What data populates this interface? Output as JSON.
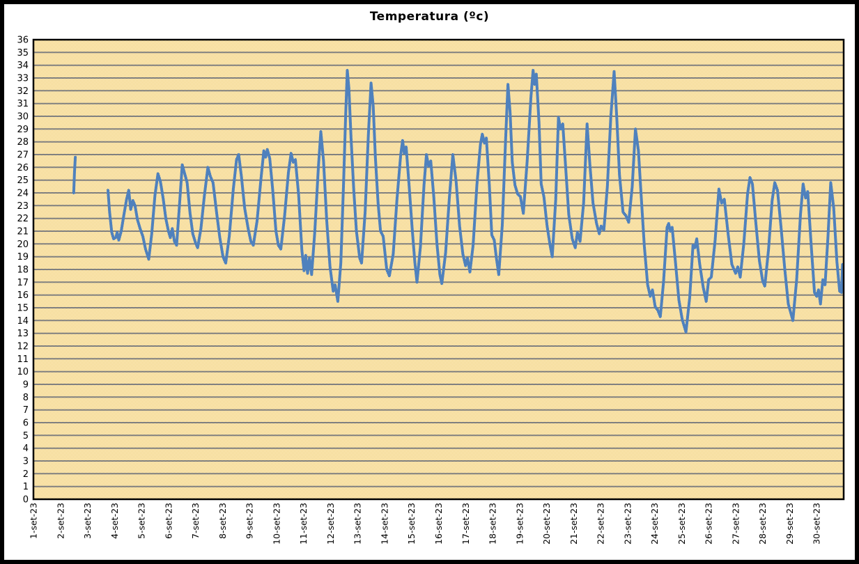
{
  "window": {
    "background": "#ffffff",
    "frame_color": "#000000"
  },
  "chart_data": {
    "type": "line",
    "title": "Temperatura (ºc)",
    "xlabel": "",
    "ylabel": "",
    "legend": "none",
    "grid": "horizontal",
    "ylim": [
      0,
      36
    ],
    "ytick_step": 1,
    "xlim_days": [
      1,
      31
    ],
    "x_tick_labels": [
      "1-set-23",
      "2-set-23",
      "3-set-23",
      "4-set-23",
      "5-set-23",
      "6-set-23",
      "7-set-23",
      "8-set-23",
      "9-set-23",
      "10-set-23",
      "11-set-23",
      "12-set-23",
      "13-set-23",
      "14-set-23",
      "15-set-23",
      "16-set-23",
      "17-set-23",
      "18-set-23",
      "19-set-23",
      "20-set-23",
      "21-set-23",
      "22-set-23",
      "23-set-23",
      "24-set-23",
      "25-set-23",
      "26-set-23",
      "27-set-23",
      "28-set-23",
      "29-set-23",
      "30-set-23"
    ],
    "plot_style": {
      "checker_colors": [
        "#f0c24b",
        "#ffffff"
      ],
      "gridline_color": "#808080",
      "border_color": "#000000",
      "label_color": "#000000"
    },
    "series": [
      {
        "name": "Temperatura",
        "unit": "ºc",
        "color": "#4f81bd",
        "line_width": 4,
        "segments": [
          [
            [
              2.49,
              24.0
            ],
            [
              2.52,
              25.6
            ],
            [
              2.55,
              26.8
            ]
          ],
          [
            [
              3.76,
              24.2
            ],
            [
              3.82,
              22.5
            ],
            [
              3.9,
              20.9
            ],
            [
              3.97,
              20.4
            ],
            [
              4.05,
              20.5
            ],
            [
              4.1,
              20.9
            ],
            [
              4.16,
              20.3
            ],
            [
              4.25,
              21.0
            ],
            [
              4.35,
              22.3
            ],
            [
              4.45,
              23.5
            ],
            [
              4.53,
              24.2
            ],
            [
              4.6,
              22.7
            ],
            [
              4.68,
              23.4
            ],
            [
              4.76,
              23.0
            ],
            [
              4.85,
              21.9
            ],
            [
              4.95,
              21.2
            ],
            [
              5.05,
              20.6
            ],
            [
              5.15,
              19.6
            ],
            [
              5.27,
              18.8
            ],
            [
              5.38,
              20.8
            ],
            [
              5.5,
              23.8
            ],
            [
              5.61,
              25.5
            ],
            [
              5.7,
              24.9
            ],
            [
              5.8,
              23.6
            ],
            [
              5.9,
              22.0
            ],
            [
              6.0,
              21.0
            ],
            [
              6.07,
              20.5
            ],
            [
              6.14,
              21.2
            ],
            [
              6.22,
              20.2
            ],
            [
              6.3,
              19.9
            ],
            [
              6.4,
              22.8
            ],
            [
              6.51,
              26.2
            ],
            [
              6.6,
              25.5
            ],
            [
              6.69,
              24.8
            ],
            [
              6.8,
              22.4
            ],
            [
              6.9,
              20.8
            ],
            [
              7.0,
              20.1
            ],
            [
              7.08,
              19.7
            ],
            [
              7.2,
              21.2
            ],
            [
              7.33,
              23.8
            ],
            [
              7.46,
              26.0
            ],
            [
              7.55,
              25.3
            ],
            [
              7.65,
              24.8
            ],
            [
              7.78,
              22.5
            ],
            [
              7.9,
              20.5
            ],
            [
              8.02,
              19.0
            ],
            [
              8.12,
              18.5
            ],
            [
              8.25,
              20.6
            ],
            [
              8.4,
              24.3
            ],
            [
              8.52,
              26.6
            ],
            [
              8.6,
              27.0
            ],
            [
              8.7,
              25.3
            ],
            [
              8.82,
              22.8
            ],
            [
              8.95,
              21.2
            ],
            [
              9.05,
              20.2
            ],
            [
              9.14,
              19.9
            ],
            [
              9.28,
              21.8
            ],
            [
              9.42,
              25.0
            ],
            [
              9.53,
              27.3
            ],
            [
              9.6,
              26.8
            ],
            [
              9.66,
              27.4
            ],
            [
              9.75,
              26.7
            ],
            [
              9.86,
              24.2
            ],
            [
              9.98,
              21.0
            ],
            [
              10.07,
              19.9
            ],
            [
              10.16,
              19.6
            ],
            [
              10.3,
              22.2
            ],
            [
              10.44,
              25.6
            ],
            [
              10.54,
              27.1
            ],
            [
              10.62,
              26.4
            ],
            [
              10.7,
              26.6
            ],
            [
              10.82,
              23.8
            ],
            [
              10.94,
              19.5
            ],
            [
              11.02,
              17.9
            ],
            [
              11.08,
              19.1
            ],
            [
              11.15,
              17.7
            ],
            [
              11.22,
              18.9
            ],
            [
              11.3,
              17.6
            ],
            [
              11.42,
              21.0
            ],
            [
              11.55,
              26.0
            ],
            [
              11.64,
              28.8
            ],
            [
              11.74,
              26.5
            ],
            [
              11.86,
              21.8
            ],
            [
              11.98,
              18.2
            ],
            [
              12.1,
              16.3
            ],
            [
              12.17,
              16.8
            ],
            [
              12.27,
              15.5
            ],
            [
              12.38,
              18.5
            ],
            [
              12.48,
              24.5
            ],
            [
              12.56,
              30.0
            ],
            [
              12.62,
              33.6
            ],
            [
              12.68,
              32.2
            ],
            [
              12.76,
              28.3
            ],
            [
              12.86,
              24.2
            ],
            [
              12.96,
              21.0
            ],
            [
              13.08,
              18.9
            ],
            [
              13.15,
              18.5
            ],
            [
              13.28,
              22.5
            ],
            [
              13.4,
              28.5
            ],
            [
              13.5,
              32.6
            ],
            [
              13.58,
              30.8
            ],
            [
              13.66,
              26.8
            ],
            [
              13.76,
              23.2
            ],
            [
              13.85,
              21.0
            ],
            [
              13.95,
              20.6
            ],
            [
              14.08,
              18.0
            ],
            [
              14.18,
              17.5
            ],
            [
              14.32,
              19.2
            ],
            [
              14.46,
              23.5
            ],
            [
              14.6,
              27.0
            ],
            [
              14.67,
              28.1
            ],
            [
              14.73,
              27.1
            ],
            [
              14.8,
              27.6
            ],
            [
              14.92,
              24.3
            ],
            [
              15.02,
              21.3
            ],
            [
              15.12,
              18.6
            ],
            [
              15.2,
              17.0
            ],
            [
              15.33,
              19.8
            ],
            [
              15.46,
              24.6
            ],
            [
              15.55,
              27.0
            ],
            [
              15.63,
              26.1
            ],
            [
              15.71,
              26.5
            ],
            [
              15.82,
              23.8
            ],
            [
              15.94,
              20.0
            ],
            [
              16.05,
              17.6
            ],
            [
              16.12,
              16.9
            ],
            [
              16.26,
              19.3
            ],
            [
              16.4,
              23.6
            ],
            [
              16.53,
              27.0
            ],
            [
              16.65,
              24.9
            ],
            [
              16.78,
              21.4
            ],
            [
              16.9,
              19.2
            ],
            [
              17.0,
              18.3
            ],
            [
              17.07,
              18.9
            ],
            [
              17.16,
              17.8
            ],
            [
              17.28,
              19.9
            ],
            [
              17.42,
              24.6
            ],
            [
              17.55,
              27.8
            ],
            [
              17.62,
              28.6
            ],
            [
              17.7,
              27.9
            ],
            [
              17.77,
              28.3
            ],
            [
              17.88,
              24.6
            ],
            [
              17.97,
              20.7
            ],
            [
              18.06,
              20.3
            ],
            [
              18.14,
              18.9
            ],
            [
              18.23,
              17.6
            ],
            [
              18.36,
              21.5
            ],
            [
              18.48,
              28.0
            ],
            [
              18.57,
              32.5
            ],
            [
              18.65,
              30.3
            ],
            [
              18.73,
              26.4
            ],
            [
              18.83,
              24.6
            ],
            [
              18.93,
              23.9
            ],
            [
              19.03,
              23.7
            ],
            [
              19.14,
              22.4
            ],
            [
              19.28,
              26.5
            ],
            [
              19.42,
              31.5
            ],
            [
              19.5,
              33.6
            ],
            [
              19.56,
              32.5
            ],
            [
              19.62,
              33.3
            ],
            [
              19.72,
              29.5
            ],
            [
              19.8,
              24.7
            ],
            [
              19.9,
              23.7
            ],
            [
              20.02,
              21.4
            ],
            [
              20.13,
              19.9
            ],
            [
              20.21,
              19.0
            ],
            [
              20.34,
              23.5
            ],
            [
              20.44,
              29.9
            ],
            [
              20.52,
              29.0
            ],
            [
              20.6,
              29.4
            ],
            [
              20.7,
              26.2
            ],
            [
              20.82,
              22.3
            ],
            [
              20.95,
              20.4
            ],
            [
              21.06,
              19.7
            ],
            [
              21.14,
              20.9
            ],
            [
              21.24,
              20.2
            ],
            [
              21.37,
              23.2
            ],
            [
              21.5,
              29.4
            ],
            [
              21.6,
              26.3
            ],
            [
              21.72,
              23.2
            ],
            [
              21.85,
              21.6
            ],
            [
              21.95,
              20.8
            ],
            [
              22.02,
              21.4
            ],
            [
              22.12,
              21.1
            ],
            [
              22.25,
              24.5
            ],
            [
              22.38,
              30.0
            ],
            [
              22.5,
              33.5
            ],
            [
              22.6,
              29.8
            ],
            [
              22.7,
              25.4
            ],
            [
              22.83,
              22.5
            ],
            [
              22.94,
              22.2
            ],
            [
              23.04,
              21.7
            ],
            [
              23.17,
              24.5
            ],
            [
              23.29,
              29.0
            ],
            [
              23.4,
              27.3
            ],
            [
              23.5,
              23.8
            ],
            [
              23.62,
              19.8
            ],
            [
              23.74,
              16.8
            ],
            [
              23.84,
              15.9
            ],
            [
              23.92,
              16.4
            ],
            [
              24.02,
              15.1
            ],
            [
              24.12,
              14.8
            ],
            [
              24.21,
              14.3
            ],
            [
              24.33,
              17.0
            ],
            [
              24.46,
              21.3
            ],
            [
              24.52,
              21.6
            ],
            [
              24.58,
              21.0
            ],
            [
              24.65,
              21.3
            ],
            [
              24.77,
              18.6
            ],
            [
              24.9,
              15.6
            ],
            [
              25.02,
              14.1
            ],
            [
              25.16,
              13.1
            ],
            [
              25.3,
              15.8
            ],
            [
              25.42,
              19.9
            ],
            [
              25.49,
              19.7
            ],
            [
              25.56,
              20.4
            ],
            [
              25.67,
              18.4
            ],
            [
              25.8,
              16.6
            ],
            [
              25.91,
              15.5
            ],
            [
              26.0,
              17.2
            ],
            [
              26.1,
              17.4
            ],
            [
              26.24,
              20.3
            ],
            [
              26.38,
              24.3
            ],
            [
              26.48,
              23.2
            ],
            [
              26.58,
              23.5
            ],
            [
              26.72,
              20.8
            ],
            [
              26.86,
              18.4
            ],
            [
              27.0,
              17.7
            ],
            [
              27.08,
              18.2
            ],
            [
              27.17,
              17.4
            ],
            [
              27.3,
              20.0
            ],
            [
              27.44,
              23.9
            ],
            [
              27.53,
              25.2
            ],
            [
              27.62,
              24.7
            ],
            [
              27.75,
              21.6
            ],
            [
              27.88,
              18.7
            ],
            [
              28.0,
              17.1
            ],
            [
              28.08,
              16.7
            ],
            [
              28.22,
              19.6
            ],
            [
              28.35,
              23.4
            ],
            [
              28.45,
              24.8
            ],
            [
              28.55,
              24.2
            ],
            [
              28.68,
              21.3
            ],
            [
              28.82,
              18.0
            ],
            [
              28.95,
              15.3
            ],
            [
              29.12,
              14.0
            ],
            [
              29.26,
              17.2
            ],
            [
              29.4,
              22.3
            ],
            [
              29.5,
              24.7
            ],
            [
              29.59,
              23.6
            ],
            [
              29.67,
              24.1
            ],
            [
              29.8,
              19.8
            ],
            [
              29.92,
              16.2
            ],
            [
              30.0,
              15.9
            ],
            [
              30.07,
              16.4
            ],
            [
              30.14,
              15.3
            ],
            [
              30.23,
              17.2
            ],
            [
              30.31,
              16.8
            ],
            [
              30.42,
              20.6
            ],
            [
              30.52,
              24.8
            ],
            [
              30.63,
              22.8
            ],
            [
              30.75,
              18.6
            ],
            [
              30.85,
              16.3
            ],
            [
              30.92,
              16.2
            ],
            [
              30.96,
              18.4
            ]
          ]
        ]
      }
    ]
  }
}
